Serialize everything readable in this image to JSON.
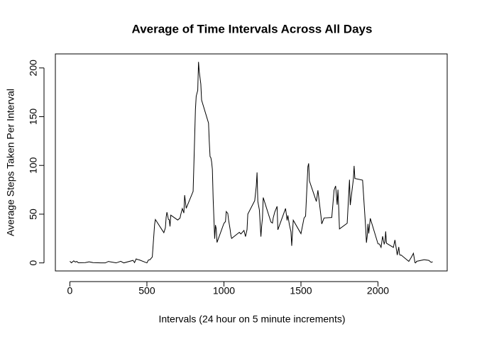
{
  "chart_data": {
    "type": "line",
    "title": "Average of Time Intervals Across All Days",
    "x_label": "Intervals (24 hour on 5 minute increments)",
    "y_label": "Average Steps Taken Per Interval",
    "xlim": [
      -94.2,
      2449.2
    ],
    "ylim": [
      -8.25,
      214.4
    ],
    "xticks": [
      0,
      500,
      1000,
      1500,
      2000
    ],
    "yticks": [
      0,
      50,
      100,
      150,
      200
    ],
    "color": "#000000",
    "x": [
      0,
      10,
      25,
      35,
      45,
      55,
      100,
      125,
      150,
      200,
      230,
      250,
      300,
      330,
      350,
      410,
      420,
      430,
      440,
      450,
      500,
      510,
      520,
      535,
      550,
      555,
      610,
      620,
      625,
      630,
      640,
      645,
      650,
      655,
      700,
      715,
      720,
      730,
      740,
      745,
      755,
      800,
      810,
      815,
      820,
      830,
      835,
      840,
      850,
      855,
      900,
      905,
      910,
      915,
      920,
      925,
      930,
      935,
      940,
      945,
      950,
      955,
      1000,
      1010,
      1015,
      1025,
      1030,
      1040,
      1045,
      1050,
      1100,
      1110,
      1130,
      1140,
      1150,
      1155,
      1200,
      1210,
      1215,
      1220,
      1230,
      1240,
      1245,
      1250,
      1255,
      1305,
      1315,
      1320,
      1330,
      1345,
      1350,
      1400,
      1405,
      1410,
      1415,
      1425,
      1435,
      1440,
      1450,
      1500,
      1520,
      1530,
      1545,
      1550,
      1555,
      1600,
      1610,
      1630,
      1635,
      1650,
      1700,
      1715,
      1725,
      1735,
      1740,
      1745,
      1750,
      1800,
      1815,
      1820,
      1840,
      1845,
      1850,
      1900,
      1920,
      1925,
      1930,
      1935,
      1940,
      1950,
      2000,
      2010,
      2020,
      2030,
      2040,
      2045,
      2050,
      2055,
      2100,
      2110,
      2115,
      2125,
      2135,
      2140,
      2145,
      2150,
      2200,
      2215,
      2230,
      2240,
      2245,
      2250,
      2300,
      2330,
      2345,
      2355
    ],
    "values": [
      1.7,
      0.1,
      2.1,
      0.9,
      1.5,
      0.1,
      0.3,
      1.1,
      0.3,
      0,
      0,
      1.5,
      0,
      1.6,
      0,
      2.6,
      0.3,
      4.1,
      3.5,
      3.1,
      0,
      3,
      3.3,
      6.1,
      39.5,
      44.5,
      31,
      36,
      47,
      52,
      44.5,
      44.3,
      37.4,
      49,
      44,
      46,
      49.8,
      55.7,
      51.2,
      69.5,
      56,
      73.4,
      129,
      157.5,
      171,
      177,
      206.2,
      195.9,
      183.4,
      167,
      143.5,
      124,
      109,
      108,
      103.7,
      95.9,
      66.2,
      45.2,
      24.8,
      38.8,
      35,
      21,
      40.6,
      42.4,
      52.7,
      50.8,
      44.3,
      34.6,
      28.3,
      25.1,
      31.4,
      29.7,
      33.3,
      27,
      34.2,
      50,
      63.9,
      78.9,
      92.8,
      63,
      54.5,
      27,
      38,
      45.8,
      67,
      42,
      40.9,
      46.2,
      52.2,
      58,
      34,
      55.8,
      50,
      43.6,
      48.7,
      39,
      32,
      17.5,
      43.8,
      30,
      46,
      48,
      98.7,
      102.1,
      84,
      63,
      74.5,
      47.8,
      40,
      46.1,
      46.6,
      74.7,
      78.9,
      59.7,
      75.1,
      56.5,
      34.8,
      40.7,
      85.3,
      59.3,
      85.6,
      99.5,
      86.6,
      84.9,
      36.1,
      20.7,
      27.4,
      40,
      30.2,
      45.7,
      19.6,
      19.3,
      15.9,
      27.3,
      19.5,
      21.3,
      32.3,
      20.2,
      15.9,
      23.5,
      18.5,
      8.1,
      16.3,
      8.7,
      7.8,
      8.1,
      1.6,
      5.4,
      9.8,
      0.3,
      0,
      1.6,
      3.3,
      2.6,
      0.6,
      1.1
    ]
  }
}
